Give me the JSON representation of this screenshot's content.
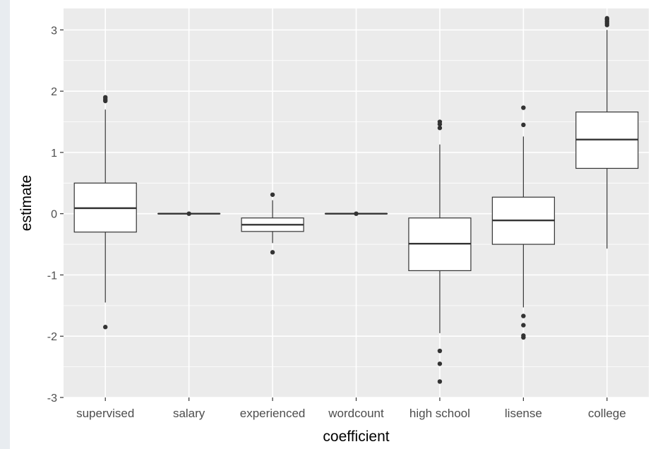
{
  "chart_data": {
    "type": "boxplot",
    "title": "",
    "xlabel": "coefficient",
    "ylabel": "estimate",
    "ylim": [
      -3,
      3.35
    ],
    "yticks": [
      -3,
      -2,
      -1,
      0,
      1,
      2,
      3
    ],
    "ytick_labels": [
      "-3",
      "-2",
      "-1",
      "0",
      "1",
      "2",
      "3"
    ],
    "grid": true,
    "categories": [
      "supervised",
      "salary",
      "experienced",
      "wordcount",
      "high school",
      "lisense",
      "college"
    ],
    "boxes": [
      {
        "category": "supervised",
        "lower_whisker": -1.45,
        "q1": -0.3,
        "median": 0.09,
        "q3": 0.5,
        "upper_whisker": 1.7,
        "outliers": [
          -1.85,
          1.84,
          1.87,
          1.9
        ]
      },
      {
        "category": "salary",
        "lower_whisker": 0.0,
        "q1": 0.0,
        "median": 0.0,
        "q3": 0.0,
        "upper_whisker": 0.0,
        "outliers": [
          0.0
        ]
      },
      {
        "category": "experienced",
        "lower_whisker": -0.48,
        "q1": -0.29,
        "median": -0.18,
        "q3": -0.07,
        "upper_whisker": 0.22,
        "outliers": [
          -0.63,
          0.31
        ]
      },
      {
        "category": "wordcount",
        "lower_whisker": 0.0,
        "q1": 0.0,
        "median": 0.0,
        "q3": 0.0,
        "upper_whisker": 0.0,
        "outliers": [
          0.0
        ]
      },
      {
        "category": "high school",
        "lower_whisker": -1.95,
        "q1": -0.93,
        "median": -0.49,
        "q3": -0.07,
        "upper_whisker": 1.13,
        "outliers": [
          -2.74,
          -2.45,
          -2.24,
          1.4,
          1.46,
          1.5
        ]
      },
      {
        "category": "lisense",
        "lower_whisker": -1.53,
        "q1": -0.5,
        "median": -0.11,
        "q3": 0.27,
        "upper_whisker": 1.26,
        "outliers": [
          -2.02,
          -1.99,
          -1.82,
          -1.67,
          1.45,
          1.73
        ]
      },
      {
        "category": "college",
        "lower_whisker": -0.57,
        "q1": 0.74,
        "median": 1.21,
        "q3": 1.66,
        "upper_whisker": 3.0,
        "outliers": [
          3.08,
          3.11,
          3.14,
          3.17,
          3.19
        ]
      }
    ],
    "colors": {
      "panel_background": "#ebebeb",
      "gridline": "#ffffff",
      "box_fill": "#ffffff",
      "box_stroke": "#333333",
      "outlier": "#333333",
      "tick_text": "#4d4d4d",
      "axis_title": "#000000"
    }
  }
}
